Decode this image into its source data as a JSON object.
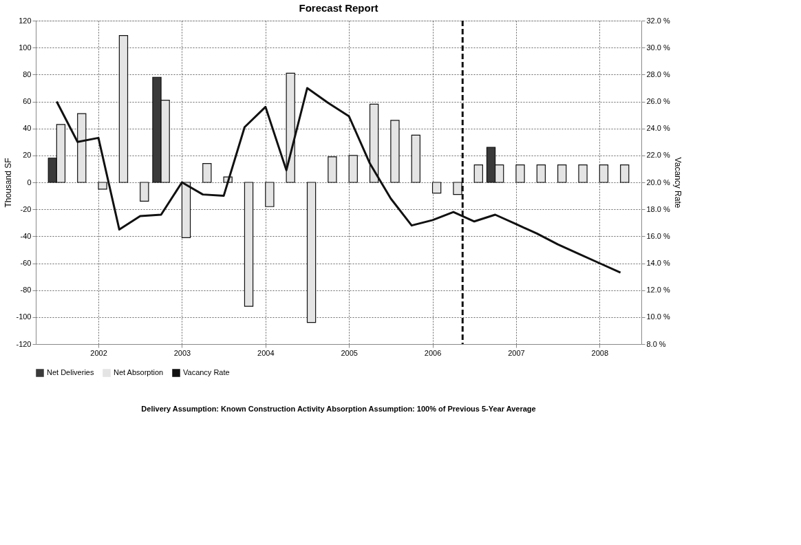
{
  "chart_data": {
    "type": "bar",
    "title": "Forecast Report",
    "ylabel": "Thousand SF",
    "y2label": "Vacancy Rate",
    "x": [
      2001.5,
      2001.75,
      2002.0,
      2002.25,
      2002.5,
      2002.75,
      2003.0,
      2003.25,
      2003.5,
      2003.75,
      2004.0,
      2004.25,
      2004.5,
      2004.75,
      2005.0,
      2005.25,
      2005.5,
      2005.75,
      2006.0,
      2006.25,
      2006.5,
      2006.75,
      2007.0,
      2007.25,
      2007.5,
      2007.75,
      2008.0,
      2008.25
    ],
    "series": [
      {
        "name": "Net Deliveries",
        "color": "#3a3a3a",
        "values": [
          18,
          null,
          null,
          null,
          null,
          78,
          null,
          null,
          null,
          null,
          null,
          null,
          null,
          null,
          null,
          null,
          null,
          null,
          null,
          null,
          null,
          26,
          null,
          null,
          null,
          null,
          null,
          null
        ]
      },
      {
        "name": "Net Absorption",
        "color": "#e4e4e4",
        "values": [
          43,
          51,
          -5,
          109,
          -14,
          61,
          -41,
          14,
          4,
          -92,
          -18,
          81,
          -104,
          19,
          20,
          58,
          46,
          35,
          -8,
          -9,
          13,
          13,
          13,
          13,
          13,
          13,
          13,
          13
        ]
      },
      {
        "name": "Vacancy Rate",
        "type": "line",
        "axis": "y2",
        "color": "#111111",
        "values": [
          26.0,
          23.0,
          23.3,
          16.5,
          17.5,
          17.6,
          20.0,
          19.1,
          19.0,
          24.1,
          25.6,
          20.9,
          27.0,
          25.9,
          24.9,
          21.4,
          18.8,
          16.8,
          17.2,
          17.8,
          17.1,
          17.6,
          16.9,
          16.2,
          15.4,
          14.7,
          14.0,
          13.3
        ]
      }
    ],
    "xlim": [
      2001.25,
      2008.5
    ],
    "xticks": [
      2002,
      2003,
      2004,
      2005,
      2006,
      2007,
      2008
    ],
    "ylim": [
      -120,
      120
    ],
    "yticks": [
      -120,
      -100,
      -80,
      -60,
      -40,
      -20,
      0,
      20,
      40,
      60,
      80,
      100,
      120
    ],
    "y2lim": [
      8,
      32
    ],
    "y2ticks": [
      {
        "value": 8,
        "label": "8.0 %"
      },
      {
        "value": 10,
        "label": "10.0 %"
      },
      {
        "value": 12,
        "label": "12.0 %"
      },
      {
        "value": 14,
        "label": "14.0 %"
      },
      {
        "value": 16,
        "label": "16.0 %"
      },
      {
        "value": 18,
        "label": "18.0 %"
      },
      {
        "value": 20,
        "label": "20.0 %"
      },
      {
        "value": 22,
        "label": "22.0 %"
      },
      {
        "value": 24,
        "label": "24.0 %"
      },
      {
        "value": 26,
        "label": "26.0 %"
      },
      {
        "value": 28,
        "label": "28.0 %"
      },
      {
        "value": 30,
        "label": "30.0 %"
      },
      {
        "value": 32,
        "label": "32.0 %"
      }
    ],
    "ref_lines": [
      {
        "axis": "x",
        "value": 2006.36,
        "line_style": "dashed",
        "color": "#111111"
      }
    ],
    "grid": true,
    "legend": "bottom",
    "marker": "none",
    "line_style": "solid",
    "annotations": [
      "Delivery Assumption: Known Construction Activity   Absorption Assumption: 100% of Previous 5-Year Average"
    ]
  }
}
